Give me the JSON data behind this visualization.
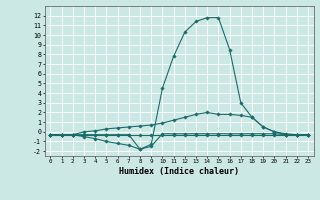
{
  "xlabel": "Humidex (Indice chaleur)",
  "bg_color": "#cce8e4",
  "grid_color": "#b0d8d0",
  "line_color": "#1a6b6b",
  "xlim": [
    -0.5,
    23.5
  ],
  "ylim": [
    -2.5,
    13.0
  ],
  "xticks": [
    0,
    1,
    2,
    3,
    4,
    5,
    6,
    7,
    8,
    9,
    10,
    11,
    12,
    13,
    14,
    15,
    16,
    17,
    18,
    19,
    20,
    21,
    22,
    23
  ],
  "yticks": [
    -2,
    -1,
    0,
    1,
    2,
    3,
    4,
    5,
    6,
    7,
    8,
    9,
    10,
    11,
    12
  ],
  "curves": [
    {
      "x": [
        0,
        1,
        2,
        3,
        4,
        5,
        6,
        7,
        8,
        9,
        10,
        11,
        12,
        13,
        14,
        15,
        16,
        17,
        18,
        19,
        20,
        21,
        22,
        23
      ],
      "y": [
        -0.3,
        -0.3,
        -0.3,
        -0.3,
        -0.3,
        -0.3,
        -0.3,
        -0.3,
        -0.3,
        -0.3,
        -0.3,
        -0.3,
        -0.3,
        -0.3,
        -0.3,
        -0.3,
        -0.3,
        -0.3,
        -0.3,
        -0.3,
        -0.3,
        -0.3,
        -0.3,
        -0.3
      ]
    },
    {
      "x": [
        0,
        1,
        2,
        3,
        4,
        5,
        6,
        7,
        8,
        9,
        10,
        11,
        12,
        13,
        14,
        15,
        16,
        17,
        18,
        19,
        20,
        21,
        22,
        23
      ],
      "y": [
        -0.3,
        -0.3,
        -0.3,
        -0.5,
        -0.7,
        -1.0,
        -1.2,
        -1.4,
        -1.8,
        -1.5,
        -0.2,
        -0.2,
        -0.2,
        -0.2,
        -0.2,
        -0.2,
        -0.2,
        -0.2,
        -0.2,
        -0.2,
        -0.2,
        -0.3,
        -0.3,
        -0.3
      ]
    },
    {
      "x": [
        0,
        1,
        2,
        3,
        4,
        5,
        6,
        7,
        8,
        9,
        10,
        11,
        12,
        13,
        14,
        15,
        16,
        17,
        18,
        19,
        20,
        21,
        22,
        23
      ],
      "y": [
        -0.3,
        -0.3,
        -0.3,
        0.0,
        0.1,
        0.3,
        0.4,
        0.5,
        0.6,
        0.7,
        0.9,
        1.2,
        1.5,
        1.8,
        2.0,
        1.8,
        1.8,
        1.7,
        1.5,
        0.5,
        0.0,
        -0.2,
        -0.3,
        -0.3
      ]
    },
    {
      "x": [
        0,
        1,
        2,
        3,
        4,
        5,
        6,
        7,
        8,
        9,
        10,
        11,
        12,
        13,
        14,
        15,
        16,
        17,
        18,
        19,
        20,
        21,
        22,
        23
      ],
      "y": [
        -0.3,
        -0.3,
        -0.3,
        -0.3,
        -0.3,
        -0.3,
        -0.3,
        -0.3,
        -1.8,
        -1.3,
        4.5,
        7.8,
        10.3,
        11.4,
        11.8,
        11.8,
        8.5,
        3.0,
        1.5,
        0.5,
        0.0,
        -0.3,
        -0.3,
        -0.3
      ]
    }
  ]
}
